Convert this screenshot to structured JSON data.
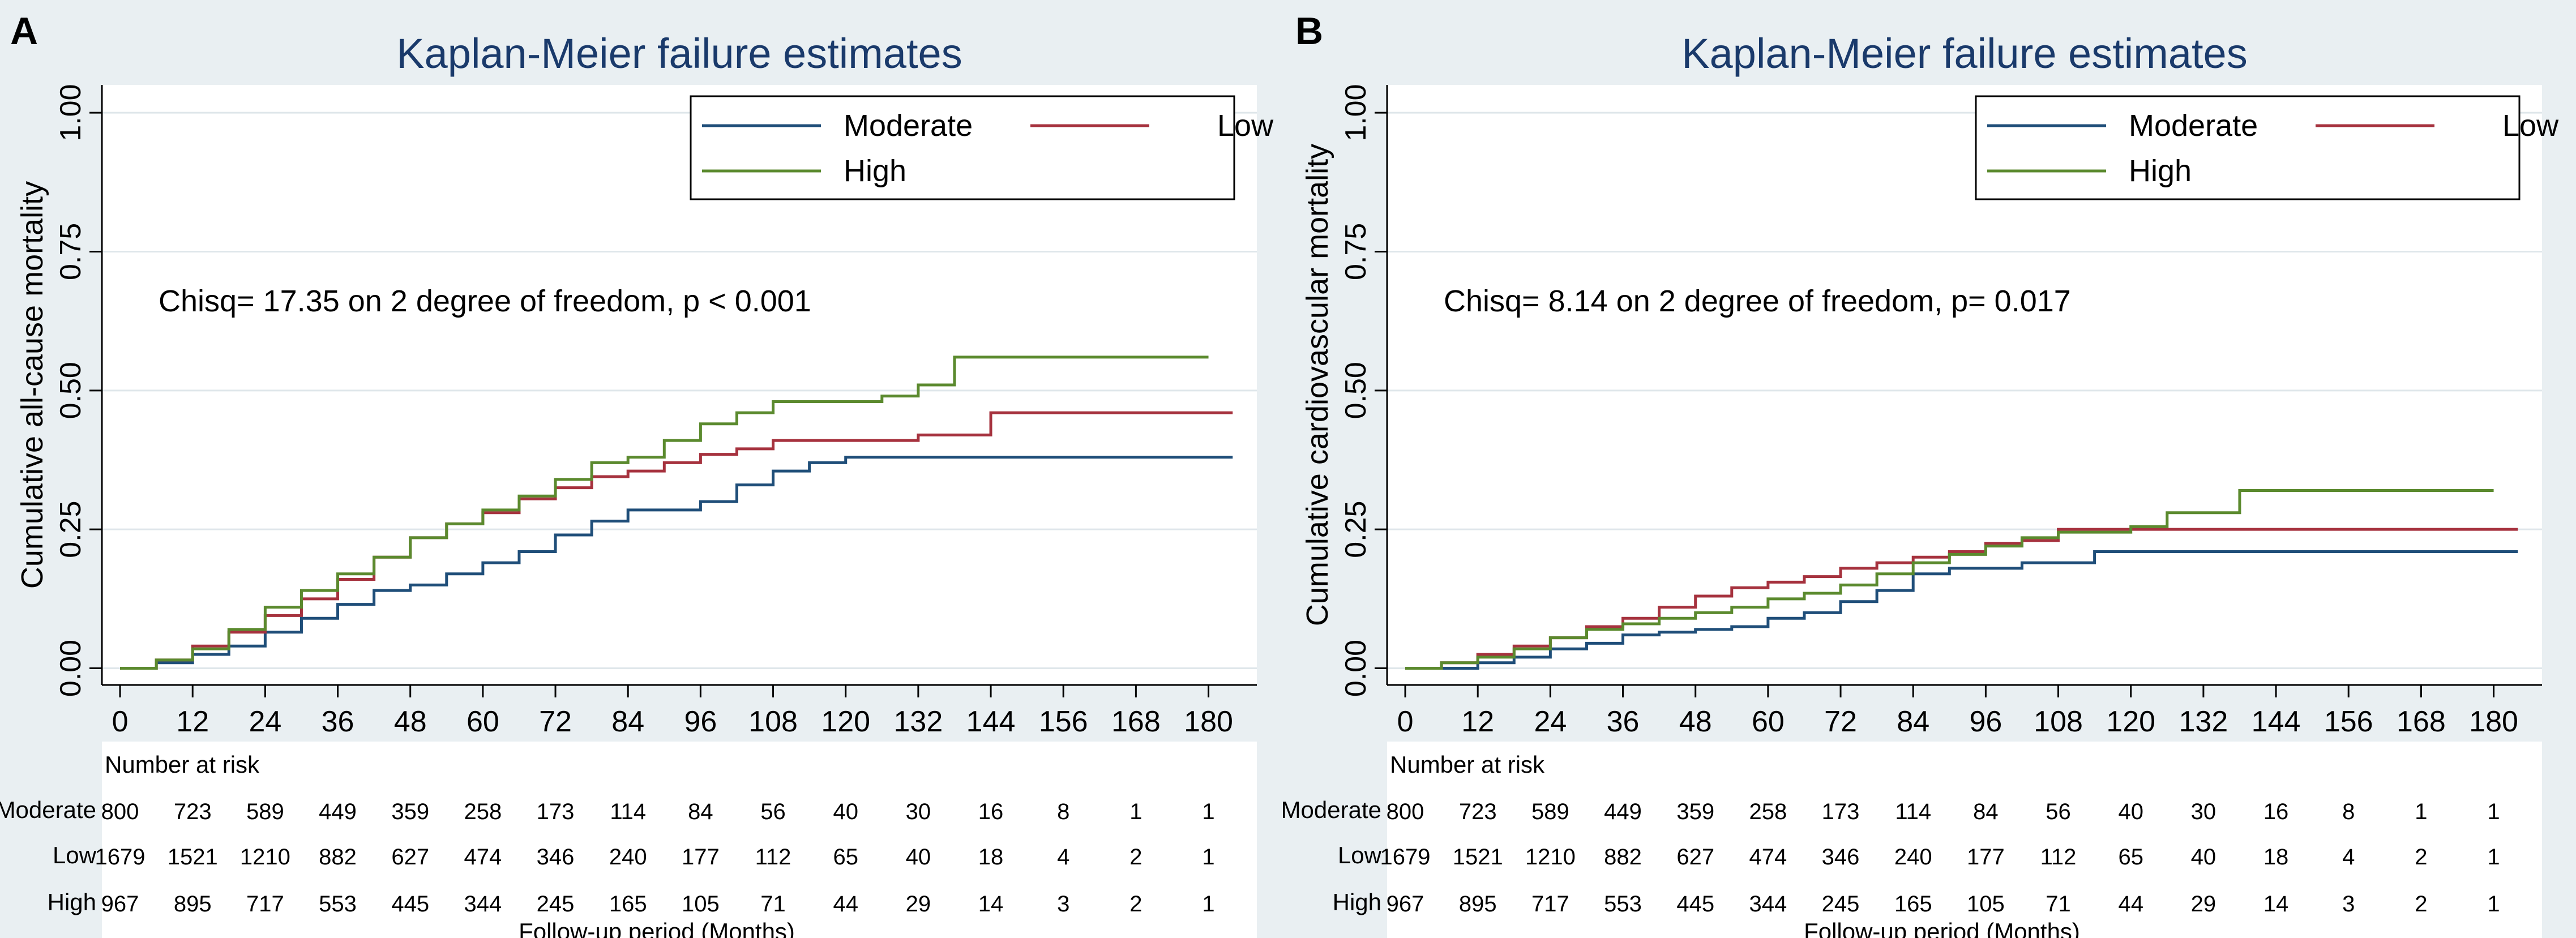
{
  "chart_data": [
    {
      "panel_label": "A",
      "type": "line",
      "title": "Kaplan-Meier failure estimates",
      "ylabel": "Cumulative all-cause mortality",
      "xlabel": "Follow-up period (Months)",
      "xlim": [
        -3,
        188
      ],
      "ylim": [
        -0.03,
        1.05
      ],
      "x_ticks": [
        0,
        12,
        24,
        36,
        48,
        60,
        72,
        84,
        96,
        108,
        120,
        132,
        144,
        156,
        168,
        180
      ],
      "y_ticks": [
        0,
        0.25,
        0.5,
        0.75,
        1.0
      ],
      "y_tick_labels": [
        "0.00",
        "0.25",
        "0.50",
        "0.75",
        "1.00"
      ],
      "grid": true,
      "legend_position": "top-right",
      "annotation": "Chisq= 17.35 on 2 degree of freedom, p < 0.001",
      "series": [
        {
          "name": "Moderate",
          "color": "#1f4e79",
          "points": [
            [
              0,
              0
            ],
            [
              6,
              0.01
            ],
            [
              12,
              0.025
            ],
            [
              18,
              0.04
            ],
            [
              24,
              0.065
            ],
            [
              30,
              0.09
            ],
            [
              36,
              0.115
            ],
            [
              42,
              0.14
            ],
            [
              48,
              0.15
            ],
            [
              54,
              0.17
            ],
            [
              60,
              0.19
            ],
            [
              66,
              0.21
            ],
            [
              72,
              0.24
            ],
            [
              78,
              0.265
            ],
            [
              84,
              0.285
            ],
            [
              96,
              0.3
            ],
            [
              102,
              0.33
            ],
            [
              108,
              0.355
            ],
            [
              114,
              0.37
            ],
            [
              120,
              0.38
            ],
            [
              184,
              0.38
            ]
          ]
        },
        {
          "name": "Low",
          "color": "#a6323e",
          "points": [
            [
              0,
              0
            ],
            [
              6,
              0.015
            ],
            [
              12,
              0.04
            ],
            [
              18,
              0.065
            ],
            [
              24,
              0.095
            ],
            [
              30,
              0.125
            ],
            [
              36,
              0.16
            ],
            [
              42,
              0.2
            ],
            [
              48,
              0.235
            ],
            [
              54,
              0.26
            ],
            [
              60,
              0.28
            ],
            [
              66,
              0.305
            ],
            [
              72,
              0.325
            ],
            [
              78,
              0.345
            ],
            [
              84,
              0.355
            ],
            [
              90,
              0.37
            ],
            [
              96,
              0.385
            ],
            [
              102,
              0.395
            ],
            [
              108,
              0.41
            ],
            [
              132,
              0.42
            ],
            [
              144,
              0.42
            ],
            [
              144,
              0.46
            ],
            [
              184,
              0.46
            ]
          ]
        },
        {
          "name": "High",
          "color": "#5b8a2e",
          "points": [
            [
              0,
              0
            ],
            [
              6,
              0.015
            ],
            [
              12,
              0.035
            ],
            [
              18,
              0.07
            ],
            [
              24,
              0.11
            ],
            [
              30,
              0.14
            ],
            [
              36,
              0.17
            ],
            [
              42,
              0.2
            ],
            [
              48,
              0.235
            ],
            [
              54,
              0.26
            ],
            [
              60,
              0.285
            ],
            [
              66,
              0.31
            ],
            [
              72,
              0.34
            ],
            [
              78,
              0.37
            ],
            [
              84,
              0.38
            ],
            [
              90,
              0.41
            ],
            [
              96,
              0.44
            ],
            [
              102,
              0.46
            ],
            [
              108,
              0.48
            ],
            [
              126,
              0.49
            ],
            [
              132,
              0.51
            ],
            [
              138,
              0.52
            ],
            [
              138,
              0.56
            ],
            [
              180,
              0.56
            ]
          ]
        }
      ],
      "risk_table": {
        "title": "Number at risk",
        "rows": [
          {
            "label": "Moderate",
            "values": [
              "800",
              "723",
              "589",
              "449",
              "359",
              "258",
              "173",
              "114",
              "84",
              "56",
              "40",
              "30",
              "16",
              "8",
              "1",
              "1"
            ]
          },
          {
            "label": "Low",
            "values": [
              "1679",
              "1521",
              "1210",
              "882",
              "627",
              "474",
              "346",
              "240",
              "177",
              "112",
              "65",
              "40",
              "18",
              "4",
              "2",
              "1"
            ]
          },
          {
            "label": "High",
            "values": [
              "967",
              "895",
              "717",
              "553",
              "445",
              "344",
              "245",
              "165",
              "105",
              "71",
              "44",
              "29",
              "14",
              "3",
              "2",
              "1"
            ]
          }
        ]
      }
    },
    {
      "panel_label": "B",
      "type": "line",
      "title": "Kaplan-Meier failure estimates",
      "ylabel": "Cumulative cardiovascular mortality",
      "xlabel": "Follow-up period (Months)",
      "xlim": [
        -3,
        188
      ],
      "ylim": [
        -0.03,
        1.05
      ],
      "x_ticks": [
        0,
        12,
        24,
        36,
        48,
        60,
        72,
        84,
        96,
        108,
        120,
        132,
        144,
        156,
        168,
        180
      ],
      "y_ticks": [
        0,
        0.25,
        0.5,
        0.75,
        1.0
      ],
      "y_tick_labels": [
        "0.00",
        "0.25",
        "0.50",
        "0.75",
        "1.00"
      ],
      "grid": true,
      "legend_position": "top-right",
      "annotation": "Chisq= 8.14 on 2 degree of freedom, p= 0.017",
      "series": [
        {
          "name": "Moderate",
          "color": "#1f4e79",
          "points": [
            [
              0,
              0
            ],
            [
              12,
              0.01
            ],
            [
              18,
              0.02
            ],
            [
              24,
              0.035
            ],
            [
              30,
              0.045
            ],
            [
              36,
              0.06
            ],
            [
              42,
              0.065
            ],
            [
              48,
              0.07
            ],
            [
              54,
              0.075
            ],
            [
              60,
              0.09
            ],
            [
              66,
              0.1
            ],
            [
              72,
              0.12
            ],
            [
              78,
              0.14
            ],
            [
              84,
              0.17
            ],
            [
              90,
              0.18
            ],
            [
              102,
              0.18
            ],
            [
              102,
              0.19
            ],
            [
              114,
              0.19
            ],
            [
              114,
              0.21
            ],
            [
              184,
              0.21
            ]
          ]
        },
        {
          "name": "Low",
          "color": "#a6323e",
          "points": [
            [
              0,
              0
            ],
            [
              6,
              0.01
            ],
            [
              12,
              0.025
            ],
            [
              18,
              0.04
            ],
            [
              24,
              0.055
            ],
            [
              30,
              0.075
            ],
            [
              36,
              0.09
            ],
            [
              42,
              0.11
            ],
            [
              48,
              0.13
            ],
            [
              54,
              0.145
            ],
            [
              60,
              0.155
            ],
            [
              66,
              0.165
            ],
            [
              72,
              0.18
            ],
            [
              78,
              0.19
            ],
            [
              84,
              0.2
            ],
            [
              90,
              0.21
            ],
            [
              96,
              0.225
            ],
            [
              102,
              0.23
            ],
            [
              108,
              0.25
            ],
            [
              184,
              0.25
            ]
          ]
        },
        {
          "name": "High",
          "color": "#5b8a2e",
          "points": [
            [
              0,
              0
            ],
            [
              6,
              0.01
            ],
            [
              12,
              0.02
            ],
            [
              18,
              0.035
            ],
            [
              24,
              0.055
            ],
            [
              30,
              0.07
            ],
            [
              36,
              0.08
            ],
            [
              42,
              0.09
            ],
            [
              48,
              0.1
            ],
            [
              54,
              0.11
            ],
            [
              60,
              0.125
            ],
            [
              66,
              0.135
            ],
            [
              72,
              0.15
            ],
            [
              78,
              0.17
            ],
            [
              84,
              0.19
            ],
            [
              90,
              0.205
            ],
            [
              96,
              0.22
            ],
            [
              102,
              0.235
            ],
            [
              108,
              0.245
            ],
            [
              120,
              0.255
            ],
            [
              126,
              0.28
            ],
            [
              138,
              0.28
            ],
            [
              138,
              0.32
            ],
            [
              180,
              0.32
            ]
          ]
        }
      ],
      "risk_table": {
        "title": "Number at risk",
        "rows": [
          {
            "label": "Moderate",
            "values": [
              "800",
              "723",
              "589",
              "449",
              "359",
              "258",
              "173",
              "114",
              "84",
              "56",
              "40",
              "30",
              "16",
              "8",
              "1",
              "1"
            ]
          },
          {
            "label": "Low",
            "values": [
              "1679",
              "1521",
              "1210",
              "882",
              "627",
              "474",
              "346",
              "240",
              "177",
              "112",
              "65",
              "40",
              "18",
              "4",
              "2",
              "1"
            ]
          },
          {
            "label": "High",
            "values": [
              "967",
              "895",
              "717",
              "553",
              "445",
              "344",
              "245",
              "165",
              "105",
              "71",
              "44",
              "29",
              "14",
              "3",
              "2",
              "1"
            ]
          }
        ]
      }
    }
  ]
}
